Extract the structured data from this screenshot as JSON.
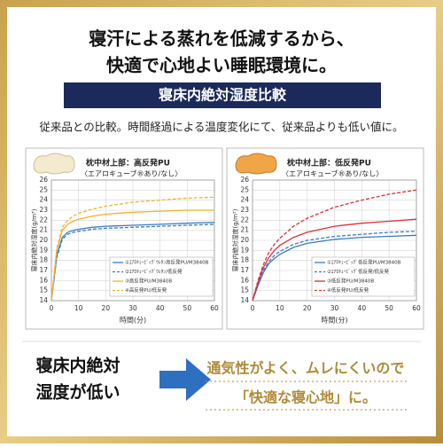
{
  "header": {
    "line1": "寝汗による蒸れを低減するから、",
    "line2": "快適で心地よい睡眠環境に。",
    "banner": "寝床内絶対湿度比較",
    "description": "従来品との比較。時間経過による温度変化にて、従来品よりも低い値に。"
  },
  "chart_data": [
    {
      "type": "line",
      "subtitle": "枕中材上部：高反発PU",
      "note": "〈エアロキューブ®あり/なし〉",
      "x_label": "時間(分)",
      "y_label": "寝床内絶対湿度(g/m³)",
      "x": [
        0,
        2,
        4,
        6,
        8,
        10,
        15,
        20,
        30,
        40,
        50,
        60
      ],
      "xlim": [
        0,
        60
      ],
      "xticks": [
        0,
        10,
        20,
        30,
        40,
        50,
        60
      ],
      "ylim": [
        14,
        26
      ],
      "yticks": [
        14,
        15,
        16,
        17,
        18,
        19,
        20,
        21,
        22,
        23,
        24,
        25,
        26
      ],
      "grid": true,
      "series": [
        {
          "name": "①ｴｱﾛｷｭｰﾋﾞｯｸﾞｳﾚﾀﾝ高反発PU/M3840B",
          "color": "#3a7cc4",
          "style": "solid",
          "values": [
            14,
            18.5,
            20.3,
            20.8,
            21.0,
            21.1,
            21.3,
            21.4,
            21.5,
            21.6,
            21.7,
            21.8
          ]
        },
        {
          "name": "②ｴｱﾛｷｭｰﾋﾞｯｸﾞｳﾚﾀﾝ/低反発",
          "color": "#3a7cc4",
          "style": "dashed",
          "values": [
            14,
            18.3,
            20.1,
            20.6,
            20.8,
            20.9,
            21.1,
            21.2,
            21.3,
            21.4,
            21.5,
            21.6
          ]
        },
        {
          "name": "③高反発PU/M3840B",
          "color": "#f0b429",
          "style": "solid",
          "values": [
            14,
            19.0,
            21.0,
            21.6,
            21.9,
            22.1,
            22.4,
            22.6,
            22.8,
            22.9,
            23.0,
            23.0
          ]
        },
        {
          "name": "④高反発PU/低反発",
          "color": "#f0b429",
          "style": "dashed",
          "values": [
            14,
            19.2,
            21.3,
            22.0,
            22.4,
            22.7,
            23.1,
            23.4,
            23.8,
            24.0,
            24.2,
            24.3
          ]
        }
      ]
    },
    {
      "type": "line",
      "subtitle": "枕中材上部：低反発PU",
      "note": "〈エアロキューブ®あり/なし〉",
      "x_label": "時間(分)",
      "y_label": "寝床内絶対湿度(g/m³)",
      "x": [
        0,
        2,
        4,
        6,
        8,
        10,
        15,
        20,
        30,
        40,
        50,
        60
      ],
      "xlim": [
        0,
        60
      ],
      "xticks": [
        0,
        10,
        20,
        30,
        40,
        50,
        60
      ],
      "ylim": [
        14,
        26
      ],
      "yticks": [
        14,
        15,
        16,
        17,
        18,
        19,
        20,
        21,
        22,
        23,
        24,
        25,
        26
      ],
      "grid": true,
      "series": [
        {
          "name": "①ｴｱﾛｷｭｰﾋﾞｯｸﾞ低反発PU/M3840B",
          "color": "#3a7cc4",
          "style": "solid",
          "values": [
            14,
            15.5,
            16.8,
            17.7,
            18.2,
            18.6,
            19.3,
            19.7,
            20.1,
            20.3,
            20.4,
            20.5
          ]
        },
        {
          "name": "②ｴｱﾛｷｭｰﾋﾞｯｸﾞ低反発/低反発",
          "color": "#3a7cc4",
          "style": "dashed",
          "values": [
            14,
            15.6,
            17.0,
            17.9,
            18.5,
            18.9,
            19.6,
            20.0,
            20.4,
            20.6,
            20.8,
            20.9
          ]
        },
        {
          "name": "③低反発PU/M3840B",
          "color": "#d8323c",
          "style": "solid",
          "values": [
            14,
            15.8,
            17.3,
            18.3,
            19.0,
            19.5,
            20.3,
            20.8,
            21.4,
            21.7,
            21.9,
            22.1
          ]
        },
        {
          "name": "④低反発PU/低反発",
          "color": "#d8323c",
          "style": "dashed",
          "values": [
            14,
            16.0,
            17.6,
            18.8,
            19.6,
            20.2,
            21.4,
            22.2,
            23.3,
            24.0,
            24.6,
            25.0
          ]
        }
      ]
    }
  ],
  "footer": {
    "left_line1": "寝床内絶対",
    "left_line2": "湿度が低い",
    "right_line1": "通気性がよく、ムレにくいので",
    "right_line2": "「快適な寝心地」に。"
  }
}
